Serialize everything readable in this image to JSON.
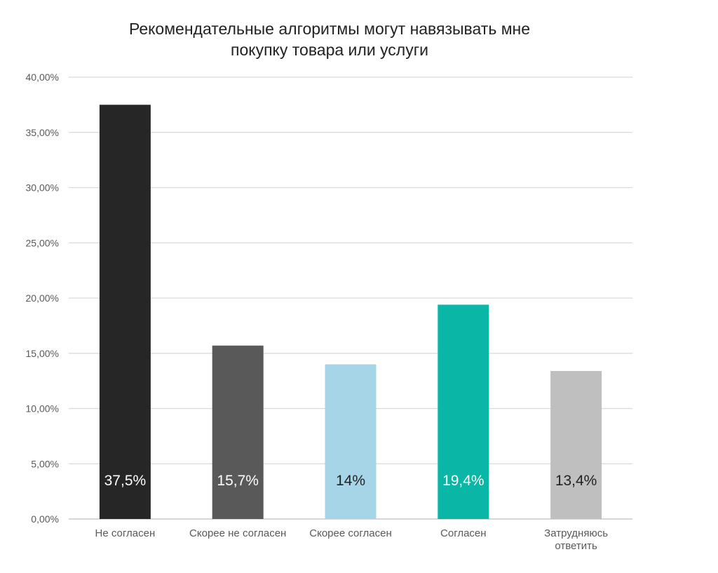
{
  "chart_data": {
    "type": "bar",
    "title_line1": "Рекомендательные алгоритмы могут навязывать мне",
    "title_line2": "покупку товара или услуги",
    "categories": [
      "Не согласен",
      "Скорее не согласен",
      "Скорее согласен",
      "Согласен",
      "Затрудняюсь ответить"
    ],
    "category_lines": [
      [
        "Не согласен"
      ],
      [
        "Скорее не согласен"
      ],
      [
        "Скорее согласен"
      ],
      [
        "Согласен"
      ],
      [
        "Затрудняюсь",
        "ответить"
      ]
    ],
    "values": [
      37.5,
      15.7,
      14.0,
      19.4,
      13.4
    ],
    "data_labels": [
      "37,5%",
      "15,7%",
      "14%",
      "19,4%",
      "13,4%"
    ],
    "colors": [
      "#262626",
      "#595959",
      "#a5d5e6",
      "#0ab6a5",
      "#bfbfbf"
    ],
    "label_colors": [
      "#ffffff",
      "#ffffff",
      "#222222",
      "#ffffff",
      "#222222"
    ],
    "yticks": [
      0,
      5,
      10,
      15,
      20,
      25,
      30,
      35,
      40
    ],
    "ytick_labels": [
      "0,00%",
      "5,00%",
      "10,00%",
      "15,00%",
      "20,00%",
      "25,00%",
      "30,00%",
      "35,00%",
      "40,00%"
    ],
    "ylim": [
      0,
      40
    ],
    "grid": true,
    "gridline_color": "#d9d9d9",
    "axis_label_color": "#595959",
    "xlabel": "",
    "ylabel": ""
  }
}
